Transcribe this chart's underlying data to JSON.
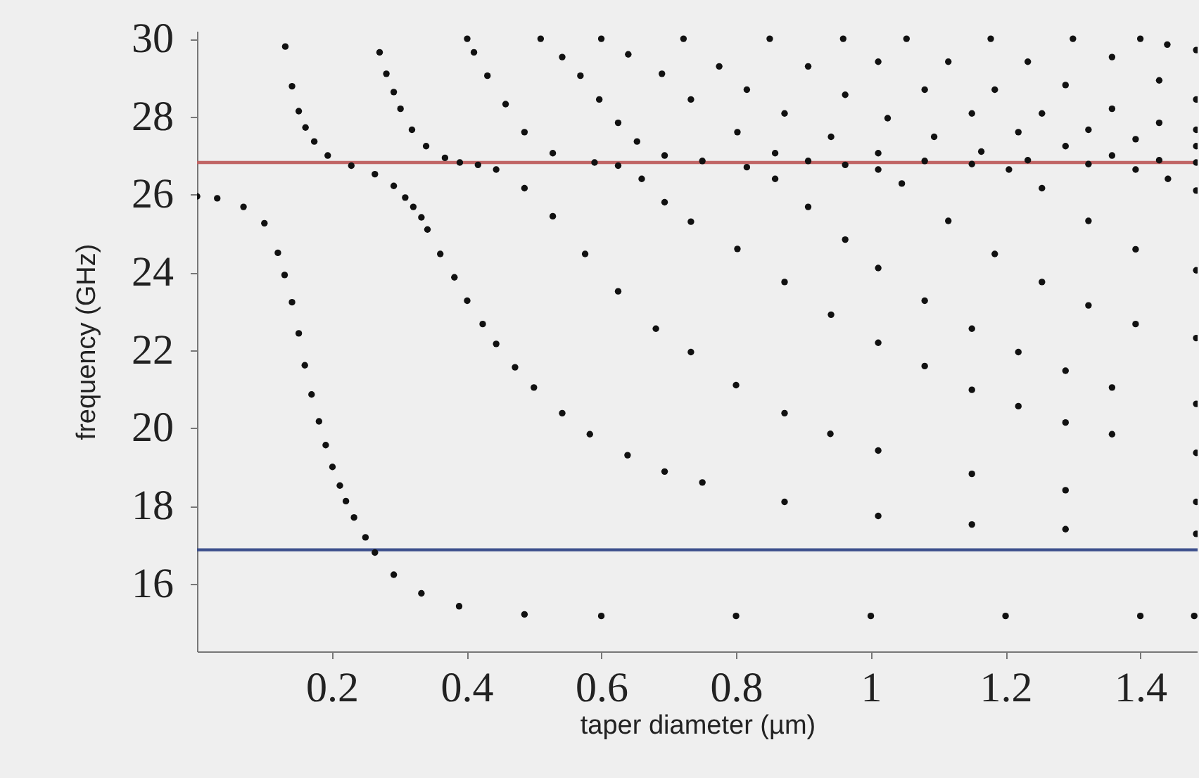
{
  "chart_data": {
    "type": "scatter",
    "xlabel": "taper diameter (µm)",
    "ylabel": "frequency (GHz)",
    "xlim": [
      0,
      1.485
    ],
    "ylim": [
      14.26,
      30.2
    ],
    "xticks": [
      0.2,
      0.4,
      0.6,
      0.8,
      1,
      1.2,
      1.4
    ],
    "yticks": [
      16,
      18,
      20,
      22,
      24,
      26,
      28,
      30
    ],
    "grid": false,
    "ref_lines": [
      {
        "axis": "y",
        "value": 26.82,
        "color": "#c06565"
      },
      {
        "axis": "y",
        "value": 16.87,
        "color": "#3c4f8c"
      }
    ],
    "series": [
      {
        "color": "#111111",
        "x": [
          0,
          0.03,
          0.069,
          0.1,
          0.12,
          0.13,
          0.141,
          0.151,
          0.16,
          0.17,
          0.181,
          0.191,
          0.201,
          0.212,
          0.221,
          0.233,
          0.25,
          0.264,
          0.292,
          0.333,
          0.389,
          0.486,
          0.6,
          0.8,
          1.0,
          1.2,
          1.4,
          1.48
        ],
        "values": [
          25.95,
          25.9,
          25.68,
          25.26,
          24.5,
          23.93,
          23.23,
          22.43,
          21.61,
          20.86,
          20.17,
          19.56,
          19.0,
          18.52,
          18.12,
          17.7,
          17.19,
          16.8,
          16.23,
          15.75,
          15.42,
          15.21,
          15.17,
          15.17,
          15.17,
          15.17,
          15.17,
          15.17
        ]
      },
      {
        "color": "#111111",
        "x": [
          0.131,
          0.141,
          0.151,
          0.161,
          0.174,
          0.194,
          0.229,
          0.264,
          0.292,
          0.309,
          0.321,
          0.333,
          0.342,
          0.361,
          0.382,
          0.401,
          0.424,
          0.444,
          0.472,
          0.5,
          0.542,
          0.583,
          0.639,
          0.694,
          0.75,
          0.872,
          1.011,
          1.15,
          1.289,
          1.483
        ],
        "values": [
          29.8,
          28.78,
          28.14,
          27.72,
          27.36,
          27.0,
          26.74,
          26.52,
          26.22,
          25.92,
          25.68,
          25.41,
          25.1,
          24.47,
          23.87,
          23.27,
          22.67,
          22.16,
          21.56,
          21.04,
          20.38,
          19.84,
          19.3,
          18.88,
          18.6,
          18.1,
          17.74,
          17.52,
          17.4,
          17.28
        ]
      },
      {
        "color": "#111111",
        "x": [
          0.271,
          0.281,
          0.292,
          0.302,
          0.319,
          0.34,
          0.368,
          0.39,
          0.417,
          0.444,
          0.486,
          0.528,
          0.576,
          0.625,
          0.681,
          0.733,
          0.8,
          0.872,
          0.94,
          1.011,
          1.15,
          1.289,
          1.483
        ],
        "values": [
          29.65,
          29.1,
          28.63,
          28.2,
          27.66,
          27.24,
          26.94,
          26.82,
          26.76,
          26.64,
          26.16,
          25.44,
          24.47,
          23.51,
          22.55,
          21.95,
          21.1,
          20.38,
          19.85,
          19.42,
          18.82,
          18.4,
          18.1
        ]
      },
      {
        "color": "#111111",
        "x": [
          0.401,
          0.411,
          0.431,
          0.458,
          0.486,
          0.528,
          0.59,
          0.625,
          0.66,
          0.694,
          0.733,
          0.802,
          0.872,
          0.941,
          1.011,
          1.08,
          1.15,
          1.219,
          1.289,
          1.358,
          1.483
        ],
        "values": [
          30.0,
          29.65,
          29.05,
          28.32,
          27.6,
          27.06,
          26.82,
          26.74,
          26.4,
          25.8,
          25.3,
          24.6,
          23.75,
          22.91,
          22.19,
          21.59,
          20.98,
          20.56,
          20.14,
          19.84,
          19.36
        ]
      },
      {
        "color": "#111111",
        "x": [
          0.51,
          0.542,
          0.569,
          0.597,
          0.625,
          0.653,
          0.694,
          0.75,
          0.816,
          0.858,
          0.907,
          0.962,
          1.011,
          1.08,
          1.15,
          1.219,
          1.289,
          1.358,
          1.483
        ],
        "values": [
          30.0,
          29.53,
          29.05,
          28.44,
          27.84,
          27.36,
          27.0,
          26.86,
          26.7,
          26.4,
          25.68,
          24.84,
          24.11,
          23.27,
          22.55,
          21.95,
          21.47,
          21.04,
          20.62
        ]
      },
      {
        "color": "#111111",
        "x": [
          0.6,
          0.64,
          0.69,
          0.733,
          0.802,
          0.858,
          0.907,
          0.962,
          1.011,
          1.046,
          1.115,
          1.184,
          1.254,
          1.323,
          1.393,
          1.483
        ],
        "values": [
          30.0,
          29.6,
          29.1,
          28.44,
          27.6,
          27.06,
          26.86,
          26.76,
          26.64,
          26.28,
          25.32,
          24.47,
          23.75,
          23.15,
          22.67,
          22.31
        ]
      },
      {
        "color": "#111111",
        "x": [
          0.722,
          0.775,
          0.816,
          0.872,
          0.941,
          1.011,
          1.08,
          1.15,
          1.205,
          1.254,
          1.323,
          1.393,
          1.483
        ],
        "values": [
          30.0,
          29.29,
          28.69,
          28.08,
          27.48,
          27.06,
          26.86,
          26.78,
          26.64,
          26.16,
          25.32,
          24.59,
          24.05
        ]
      },
      {
        "color": "#111111",
        "x": [
          0.85,
          0.907,
          0.962,
          1.025,
          1.094,
          1.164,
          1.233,
          1.323,
          1.393,
          1.441,
          1.483
        ],
        "values": [
          30.0,
          29.29,
          28.56,
          27.96,
          27.48,
          27.1,
          26.88,
          26.78,
          26.64,
          26.4,
          26.1
        ]
      },
      {
        "color": "#111111",
        "x": [
          0.959,
          1.011,
          1.08,
          1.15,
          1.219,
          1.289,
          1.358,
          1.428,
          1.483
        ],
        "values": [
          30.0,
          29.41,
          28.69,
          28.08,
          27.6,
          27.24,
          27.0,
          26.88,
          26.82
        ]
      },
      {
        "color": "#111111",
        "x": [
          1.053,
          1.115,
          1.184,
          1.254,
          1.323,
          1.393,
          1.483
        ],
        "values": [
          30.0,
          29.41,
          28.69,
          28.08,
          27.66,
          27.42,
          27.24
        ]
      },
      {
        "color": "#111111",
        "x": [
          1.178,
          1.233,
          1.289,
          1.358,
          1.428,
          1.483
        ],
        "values": [
          30.0,
          29.41,
          28.81,
          28.2,
          27.84,
          27.66
        ]
      },
      {
        "color": "#111111",
        "x": [
          1.3,
          1.358,
          1.428,
          1.483
        ],
        "values": [
          30.0,
          29.53,
          28.93,
          28.44
        ]
      },
      {
        "color": "#111111",
        "x": [
          1.4,
          1.44,
          1.483
        ],
        "values": [
          30.0,
          29.85,
          29.71
        ]
      }
    ]
  }
}
